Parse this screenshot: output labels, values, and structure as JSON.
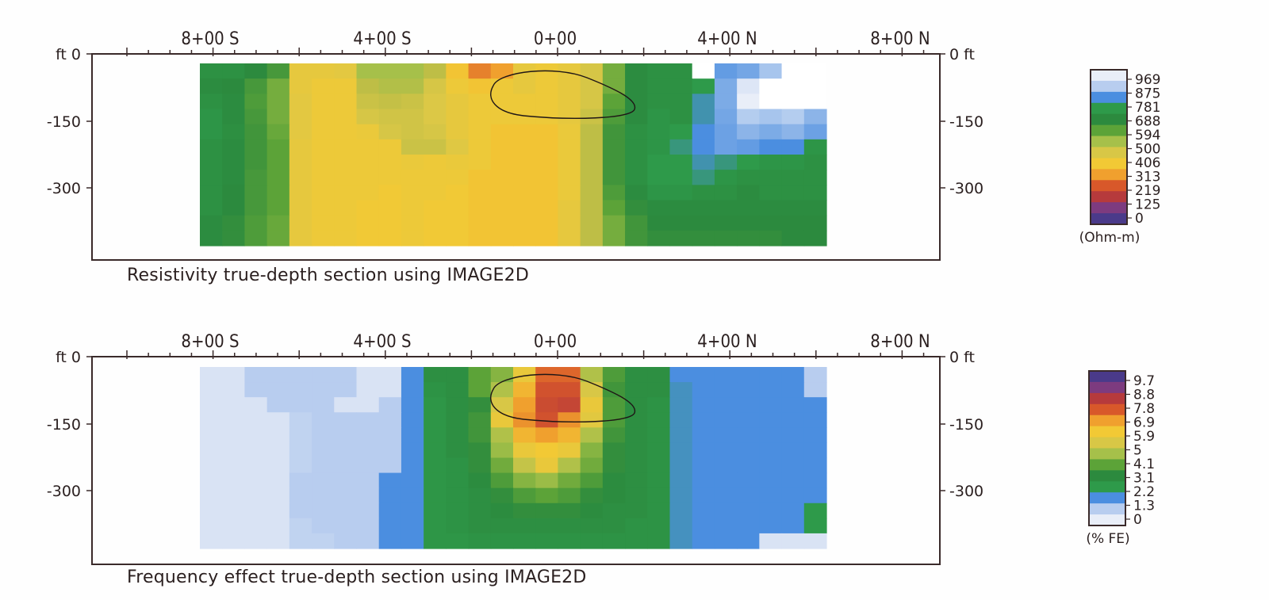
{
  "chart_data": [
    {
      "type": "heatmap",
      "title": "Resistivity true-depth section using IMAGE2D",
      "top_ticks": [
        "8+00 S",
        "4+00 S",
        "0+00",
        "4+00 N",
        "8+00 N"
      ],
      "left_ticks": [
        "ft 0",
        "-150",
        "-300"
      ],
      "right_ticks": [
        "0 ft",
        "-150",
        "-300"
      ],
      "x_range": [
        -1100,
        1100
      ],
      "y_range": [
        -470,
        0
      ],
      "legend": {
        "unit": "(Ohm-m)",
        "labels": [
          "969",
          "875",
          "781",
          "688",
          "594",
          "500",
          "406",
          "313",
          "219",
          "125",
          "0"
        ],
        "colors": [
          "#e9eef8",
          "#b8cdef",
          "#4b8ee0",
          "#2e9a4a",
          "#2c8a3e",
          "#5ca338",
          "#a6c04a",
          "#d8c746",
          "#f2c935",
          "#f0a02e",
          "#d8582a",
          "#b63a3c",
          "#7d3b7f",
          "#4a3a8a"
        ]
      },
      "cols": [
        "-770",
        "-720",
        "-670",
        "-620",
        "-570",
        "-520",
        "-470",
        "-420",
        "-370",
        "-320",
        "-270",
        "-220",
        "-170",
        "-120",
        "-70",
        "-20",
        "30",
        "80",
        "130",
        "180",
        "230",
        "280",
        "330",
        "380",
        "430",
        "480",
        "530",
        "580"
      ],
      "rows": [
        "-20",
        "-60",
        "-100",
        "-140",
        "-180",
        "-220",
        "-260",
        "-300",
        "-340",
        "-380",
        "-420",
        "-460"
      ],
      "values": [
        [
          720,
          720,
          690,
          650,
          440,
          440,
          450,
          560,
          560,
          560,
          520,
          400,
          340,
          360,
          440,
          420,
          440,
          480,
          600,
          700,
          720,
          720,
          700,
          850,
          870,
          920,
          900,
          900
        ],
        [
          700,
          690,
          650,
          600,
          440,
          420,
          420,
          520,
          540,
          540,
          480,
          420,
          400,
          420,
          440,
          420,
          440,
          480,
          600,
          700,
          720,
          720,
          760,
          880,
          960,
          969,
          960,
          969
        ],
        [
          720,
          700,
          640,
          600,
          450,
          420,
          420,
          500,
          510,
          500,
          470,
          440,
          420,
          420,
          420,
          420,
          440,
          480,
          620,
          700,
          720,
          720,
          800,
          880,
          969,
          969,
          969,
          969
        ],
        [
          740,
          700,
          650,
          600,
          450,
          420,
          420,
          480,
          490,
          490,
          470,
          440,
          420,
          420,
          420,
          420,
          440,
          500,
          640,
          700,
          740,
          720,
          800,
          870,
          930,
          920,
          930,
          900
        ],
        [
          740,
          710,
          660,
          610,
          450,
          420,
          420,
          430,
          480,
          490,
          480,
          440,
          420,
          400,
          400,
          400,
          430,
          520,
          660,
          720,
          740,
          760,
          820,
          860,
          900,
          880,
          900,
          860
        ],
        [
          720,
          700,
          660,
          620,
          440,
          420,
          420,
          420,
          420,
          500,
          500,
          460,
          420,
          400,
          400,
          400,
          430,
          520,
          660,
          720,
          740,
          780,
          820,
          860,
          850,
          820,
          820,
          740
        ],
        [
          720,
          700,
          660,
          620,
          440,
          420,
          420,
          420,
          420,
          430,
          420,
          430,
          420,
          400,
          400,
          400,
          430,
          520,
          660,
          720,
          760,
          760,
          800,
          780,
          760,
          740,
          740,
          720
        ],
        [
          720,
          700,
          650,
          620,
          440,
          420,
          420,
          420,
          420,
          420,
          420,
          420,
          400,
          400,
          400,
          400,
          430,
          520,
          660,
          720,
          760,
          760,
          780,
          740,
          720,
          720,
          720,
          720
        ],
        [
          720,
          690,
          650,
          620,
          440,
          420,
          420,
          420,
          410,
          420,
          420,
          410,
          400,
          400,
          400,
          400,
          430,
          520,
          640,
          700,
          740,
          740,
          720,
          720,
          700,
          720,
          720,
          720
        ],
        [
          720,
          690,
          650,
          620,
          440,
          420,
          420,
          410,
          410,
          420,
          410,
          410,
          400,
          400,
          400,
          400,
          440,
          520,
          620,
          680,
          700,
          700,
          700,
          700,
          700,
          700,
          700,
          700
        ],
        [
          700,
          680,
          640,
          610,
          440,
          420,
          420,
          410,
          410,
          420,
          410,
          410,
          400,
          400,
          400,
          400,
          440,
          520,
          600,
          660,
          690,
          690,
          690,
          690,
          690,
          690,
          690,
          690
        ],
        [
          700,
          680,
          640,
          610,
          440,
          420,
          420,
          410,
          410,
          420,
          410,
          410,
          400,
          400,
          400,
          400,
          440,
          520,
          600,
          660,
          680,
          680,
          680,
          680,
          680,
          680,
          690,
          690
        ]
      ]
    },
    {
      "type": "heatmap",
      "title": "Frequency effect true-depth section using IMAGE2D",
      "top_ticks": [
        "8+00 S",
        "4+00 S",
        "0+00",
        "4+00 N",
        "8+00 N"
      ],
      "left_ticks": [
        "ft 0",
        "-150",
        "-300"
      ],
      "right_ticks": [
        "0 ft",
        "-150",
        "-300"
      ],
      "x_range": [
        -1100,
        1100
      ],
      "y_range": [
        -470,
        0
      ],
      "legend": {
        "unit": "(% FE)",
        "labels": [
          "9.7",
          "8.8",
          "7.8",
          "6.9",
          "5.9",
          "5",
          "4.1",
          "3.1",
          "2.2",
          "1.3",
          "0"
        ],
        "colors": [
          "#4a3a8a",
          "#7d3b7f",
          "#b63a3c",
          "#d8582a",
          "#f0a02e",
          "#f2c935",
          "#d8c746",
          "#a6c04a",
          "#5ca338",
          "#2c8a3e",
          "#2e9a4a",
          "#4b8ee0",
          "#b8cdef",
          "#e9eef8"
        ]
      },
      "cols": [
        "-770",
        "-720",
        "-670",
        "-620",
        "-570",
        "-520",
        "-470",
        "-420",
        "-370",
        "-320",
        "-270",
        "-220",
        "-170",
        "-120",
        "-70",
        "-20",
        "30",
        "80",
        "130",
        "180",
        "230",
        "280",
        "330",
        "380",
        "430",
        "480",
        "530",
        "580"
      ],
      "rows": [
        "-20",
        "-60",
        "-100",
        "-140",
        "-180",
        "-220",
        "-260",
        "-300",
        "-340",
        "-380",
        "-420",
        "-460"
      ],
      "values": [
        [
          0.3,
          0.3,
          1.0,
          1.0,
          1.0,
          1.0,
          1.0,
          0.3,
          0.3,
          1.3,
          2.8,
          2.8,
          3.8,
          4.2,
          5.4,
          7.2,
          7.2,
          4.6,
          3.6,
          2.8,
          2.8,
          1.3,
          1.3,
          1.3,
          1.3,
          1.3,
          1.3,
          1.0
        ],
        [
          0.3,
          0.3,
          1.0,
          1.0,
          1.0,
          1.0,
          1.0,
          0.3,
          0.3,
          1.3,
          2.6,
          2.8,
          3.8,
          4.6,
          6.0,
          7.6,
          7.6,
          5.0,
          3.4,
          2.8,
          2.8,
          1.5,
          1.3,
          1.3,
          1.3,
          1.3,
          1.3,
          1.0
        ],
        [
          0.3,
          0.3,
          0.3,
          1.0,
          1.0,
          1.0,
          0.3,
          0.3,
          1.0,
          1.3,
          2.4,
          2.8,
          3.2,
          5.0,
          6.4,
          7.8,
          8.0,
          5.4,
          3.6,
          2.8,
          2.6,
          1.5,
          1.3,
          1.3,
          1.3,
          1.3,
          1.3,
          1.3
        ],
        [
          0.3,
          0.3,
          0.3,
          0.3,
          0.8,
          1.0,
          1.0,
          1.0,
          1.0,
          1.3,
          2.4,
          2.8,
          3.4,
          5.4,
          6.6,
          7.6,
          6.6,
          5.2,
          3.6,
          2.8,
          2.6,
          1.5,
          1.3,
          1.3,
          1.3,
          1.3,
          1.3,
          1.3
        ],
        [
          0.3,
          0.3,
          0.3,
          0.3,
          0.8,
          1.0,
          1.0,
          1.0,
          1.0,
          1.3,
          2.4,
          2.8,
          3.4,
          4.6,
          6.0,
          6.4,
          6.0,
          4.6,
          3.4,
          2.8,
          2.6,
          1.5,
          1.3,
          1.3,
          1.3,
          1.3,
          1.3,
          1.3
        ],
        [
          0.3,
          0.3,
          0.3,
          0.3,
          0.8,
          1.0,
          1.0,
          1.0,
          1.0,
          1.3,
          2.4,
          2.8,
          3.2,
          4.4,
          5.4,
          5.6,
          5.4,
          4.2,
          3.2,
          2.8,
          2.6,
          1.5,
          1.3,
          1.3,
          1.3,
          1.3,
          1.3,
          1.3
        ],
        [
          0.3,
          0.3,
          0.3,
          0.3,
          0.8,
          1.0,
          1.0,
          1.0,
          1.0,
          1.3,
          2.4,
          2.6,
          3.2,
          4.0,
          4.8,
          5.4,
          4.6,
          4.0,
          3.2,
          2.8,
          2.6,
          1.5,
          1.3,
          1.3,
          1.3,
          1.3,
          1.3,
          1.3
        ],
        [
          0.3,
          0.3,
          0.3,
          0.3,
          1.0,
          1.0,
          1.0,
          1.0,
          1.3,
          1.3,
          2.4,
          2.6,
          3.0,
          3.6,
          4.2,
          4.4,
          4.0,
          3.6,
          3.0,
          2.8,
          2.6,
          1.5,
          1.3,
          1.3,
          1.3,
          1.3,
          1.3,
          1.3
        ],
        [
          0.3,
          0.3,
          0.3,
          0.3,
          1.0,
          1.0,
          1.0,
          1.0,
          1.3,
          1.3,
          2.4,
          2.6,
          2.8,
          3.2,
          3.6,
          3.8,
          3.6,
          3.2,
          3.0,
          2.8,
          2.6,
          1.5,
          1.3,
          1.3,
          1.3,
          1.3,
          1.3,
          1.3
        ],
        [
          0.3,
          0.3,
          0.3,
          0.3,
          1.0,
          1.0,
          1.0,
          1.0,
          1.3,
          1.3,
          2.4,
          2.6,
          2.8,
          3.0,
          3.2,
          3.2,
          3.2,
          3.0,
          2.8,
          2.8,
          2.6,
          1.5,
          1.3,
          1.3,
          1.3,
          1.3,
          1.3,
          2.2
        ],
        [
          0.3,
          0.3,
          0.3,
          0.3,
          0.8,
          1.0,
          1.0,
          1.0,
          1.3,
          1.3,
          2.4,
          2.6,
          2.8,
          2.8,
          2.8,
          2.8,
          2.8,
          2.8,
          2.8,
          2.6,
          2.6,
          1.5,
          1.3,
          1.3,
          1.3,
          1.3,
          1.3,
          2.2
        ],
        [
          0.3,
          0.3,
          0.3,
          0.3,
          0.8,
          0.8,
          1.0,
          1.0,
          1.3,
          1.3,
          2.4,
          2.4,
          2.6,
          2.6,
          2.6,
          2.6,
          2.6,
          2.6,
          2.6,
          2.6,
          2.6,
          1.5,
          1.3,
          1.3,
          1.3,
          0.3,
          0.3,
          0.3
        ]
      ]
    }
  ]
}
